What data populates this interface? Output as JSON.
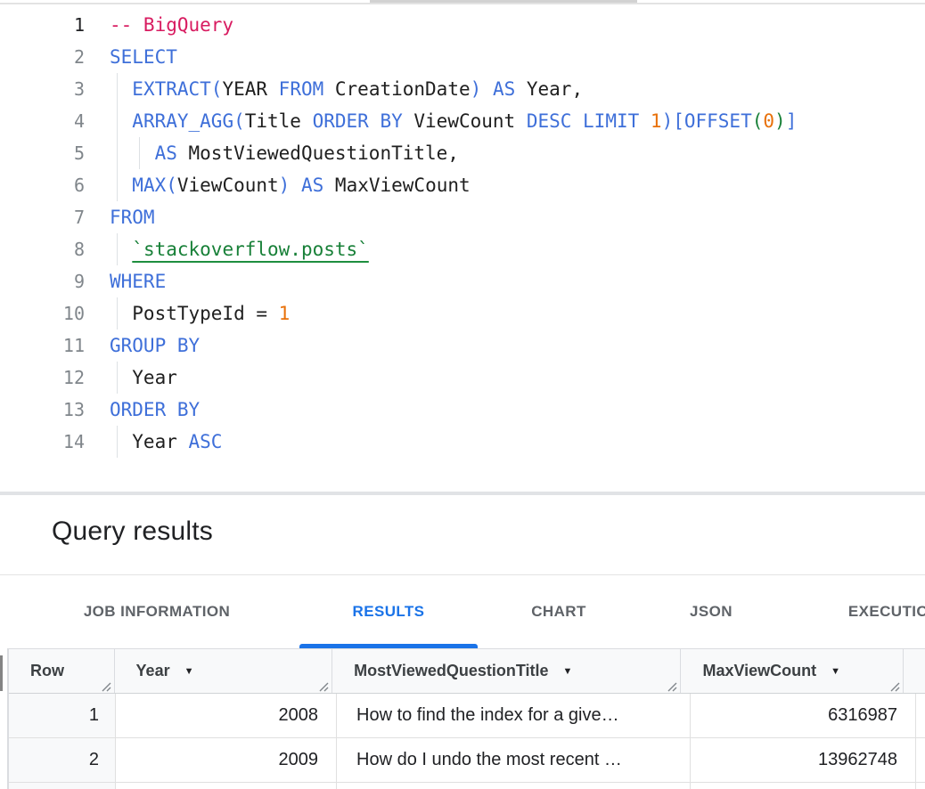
{
  "colors": {
    "keyword_blue": "#3e6fd9",
    "comment_pink": "#d81b60",
    "number_orange": "#e8710a",
    "table_ref_green": "#188038",
    "active_tab_blue": "#1a73e8",
    "tab_gray": "#5f6368",
    "header_bg": "#f8f9fa"
  },
  "editor": {
    "lines": [
      {
        "n": "1",
        "active": true,
        "guides": [],
        "tokens": [
          {
            "c": "com",
            "t": "-- BigQuery"
          }
        ]
      },
      {
        "n": "2",
        "guides": [],
        "tokens": [
          {
            "c": "kw",
            "t": "SELECT"
          }
        ]
      },
      {
        "n": "3",
        "guides": [
          1
        ],
        "tokens": [
          {
            "c": "id",
            "t": "  "
          },
          {
            "c": "kw",
            "t": "EXTRACT("
          },
          {
            "c": "id",
            "t": "YEAR "
          },
          {
            "c": "kw",
            "t": "FROM"
          },
          {
            "c": "id",
            "t": " CreationDate"
          },
          {
            "c": "kw",
            "t": ")"
          },
          {
            "c": "id",
            "t": " "
          },
          {
            "c": "kw",
            "t": "AS"
          },
          {
            "c": "id",
            "t": " Year,"
          }
        ]
      },
      {
        "n": "4",
        "guides": [
          1
        ],
        "tokens": [
          {
            "c": "id",
            "t": "  "
          },
          {
            "c": "kw",
            "t": "ARRAY_AGG("
          },
          {
            "c": "id",
            "t": "Title "
          },
          {
            "c": "kw",
            "t": "ORDER BY"
          },
          {
            "c": "id",
            "t": " ViewCount "
          },
          {
            "c": "kw",
            "t": "DESC LIMIT"
          },
          {
            "c": "num",
            "t": " 1"
          },
          {
            "c": "kw",
            "t": ")["
          },
          {
            "c": "kw",
            "t": "OFFSET"
          },
          {
            "c": "grn",
            "t": "("
          },
          {
            "c": "num",
            "t": "0"
          },
          {
            "c": "grn",
            "t": ")"
          },
          {
            "c": "kw",
            "t": "]"
          }
        ]
      },
      {
        "n": "5",
        "guides": [
          1,
          2
        ],
        "tokens": [
          {
            "c": "id",
            "t": "    "
          },
          {
            "c": "kw",
            "t": "AS"
          },
          {
            "c": "id",
            "t": " MostViewedQuestionTitle,"
          }
        ]
      },
      {
        "n": "6",
        "guides": [
          1
        ],
        "tokens": [
          {
            "c": "id",
            "t": "  "
          },
          {
            "c": "kw",
            "t": "MAX("
          },
          {
            "c": "id",
            "t": "ViewCount"
          },
          {
            "c": "kw",
            "t": ")"
          },
          {
            "c": "id",
            "t": " "
          },
          {
            "c": "kw",
            "t": "AS"
          },
          {
            "c": "id",
            "t": " MaxViewCount"
          }
        ]
      },
      {
        "n": "7",
        "guides": [],
        "tokens": [
          {
            "c": "kw",
            "t": "FROM"
          }
        ]
      },
      {
        "n": "8",
        "guides": [
          1
        ],
        "tokens": [
          {
            "c": "id",
            "t": "  "
          },
          {
            "c": "lnk",
            "t": "`stackoverflow.posts`"
          }
        ]
      },
      {
        "n": "9",
        "guides": [],
        "tokens": [
          {
            "c": "kw",
            "t": "WHERE"
          }
        ]
      },
      {
        "n": "10",
        "guides": [
          1
        ],
        "tokens": [
          {
            "c": "id",
            "t": "  PostTypeId = "
          },
          {
            "c": "num",
            "t": "1"
          }
        ]
      },
      {
        "n": "11",
        "guides": [],
        "tokens": [
          {
            "c": "kw",
            "t": "GROUP BY"
          }
        ]
      },
      {
        "n": "12",
        "guides": [
          1
        ],
        "tokens": [
          {
            "c": "id",
            "t": "  Year"
          }
        ]
      },
      {
        "n": "13",
        "guides": [],
        "tokens": [
          {
            "c": "kw",
            "t": "ORDER BY"
          }
        ]
      },
      {
        "n": "14",
        "guides": [
          1
        ],
        "tokens": [
          {
            "c": "id",
            "t": "  Year "
          },
          {
            "c": "kw",
            "t": "ASC"
          }
        ]
      }
    ]
  },
  "results": {
    "title": "Query results",
    "tabs": [
      {
        "label": "JOB INFORMATION",
        "active": false
      },
      {
        "label": "RESULTS",
        "active": true
      },
      {
        "label": "CHART",
        "active": false
      },
      {
        "label": "JSON",
        "active": false
      },
      {
        "label": "EXECUTION DETAILS",
        "active": false
      }
    ],
    "table": {
      "columns": [
        {
          "label": "Row",
          "sortable": false
        },
        {
          "label": "Year",
          "sortable": true
        },
        {
          "label": "MostViewedQuestionTitle",
          "sortable": true
        },
        {
          "label": "MaxViewCount",
          "sortable": true
        }
      ],
      "rows": [
        {
          "row": "1",
          "year": "2008",
          "title": "How to find the index for a give…",
          "max_view_count": "6316987"
        },
        {
          "row": "2",
          "year": "2009",
          "title": "How do I undo the most recent …",
          "max_view_count": "13962748"
        }
      ]
    }
  }
}
